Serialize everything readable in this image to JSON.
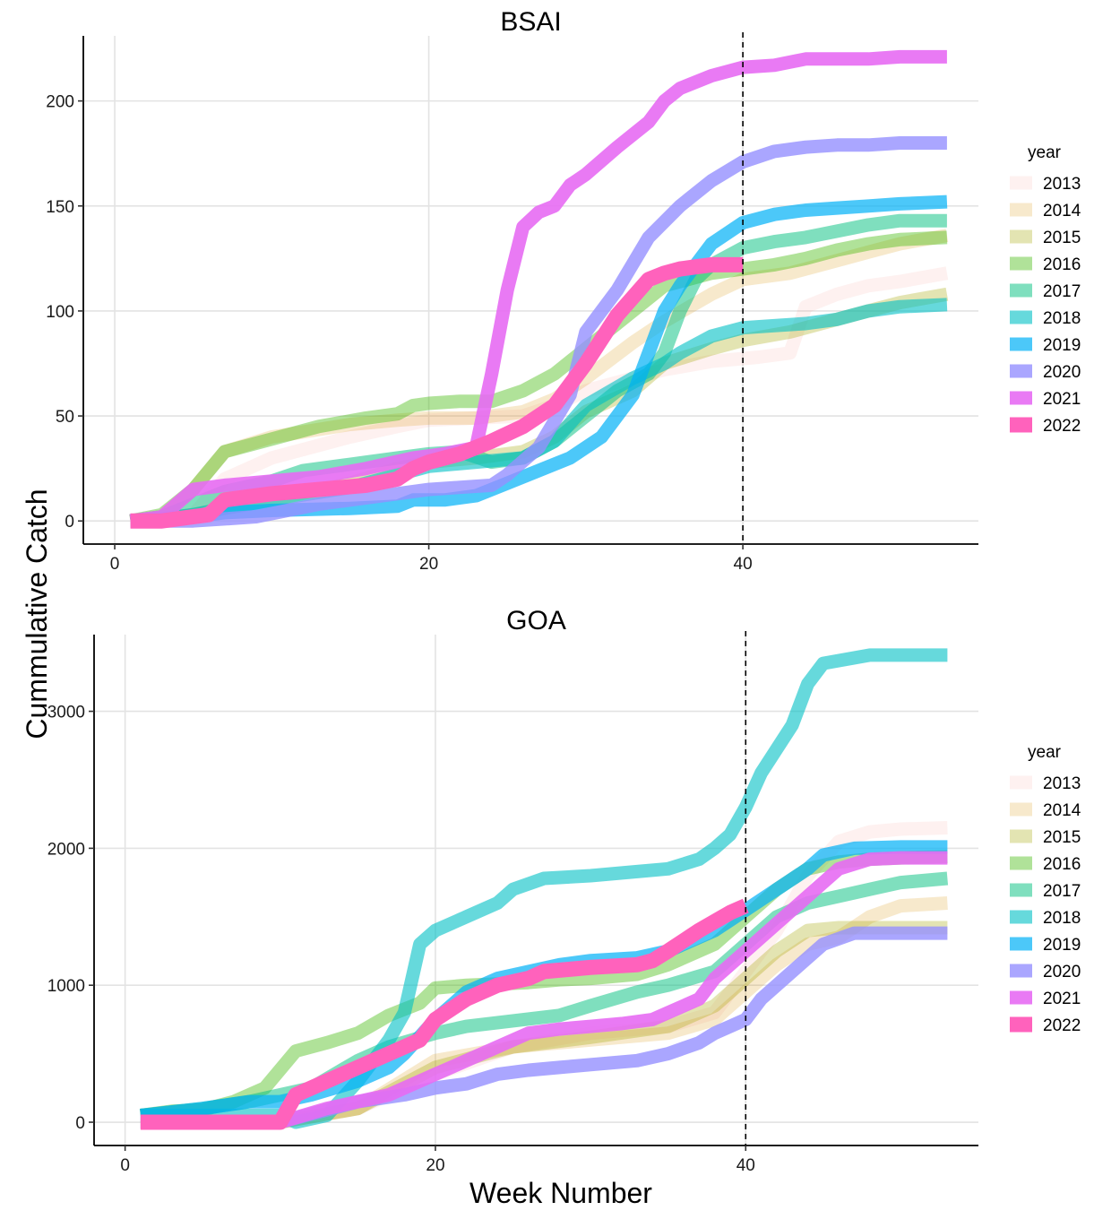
{
  "figure": {
    "ylabel": "Cummulative Catch",
    "xlabel": "Week Number",
    "legend_title": "year"
  },
  "colors": {
    "2013": "#F8766D",
    "2014": "#D89000",
    "2015": "#A3A500",
    "2016": "#39B600",
    "2017": "#00BF7D",
    "2018": "#00BFC4",
    "2019": "#00B0F6",
    "2020": "#9590FF",
    "2021": "#E76BF3",
    "2022": "#FF62BC"
  },
  "chart_data": [
    {
      "type": "line",
      "title": "BSAI",
      "xlim": [
        -2,
        55
      ],
      "ylim": [
        -11,
        231
      ],
      "xticks": [
        0,
        20,
        40
      ],
      "yticks": [
        0,
        50,
        100,
        150,
        200
      ],
      "vline": 40,
      "grid": true,
      "legend": "right",
      "series": [
        {
          "name": "2013",
          "x": [
            1,
            3,
            5,
            7,
            10,
            15,
            18,
            20,
            23,
            26,
            28,
            30,
            33,
            35,
            38,
            41,
            43,
            44,
            46,
            48,
            50,
            53
          ],
          "y": [
            0,
            1,
            3,
            20,
            30,
            40,
            45,
            48,
            49,
            50,
            55,
            62,
            68,
            72,
            76,
            78,
            80,
            102,
            108,
            112,
            114,
            118
          ]
        },
        {
          "name": "2014",
          "x": [
            1,
            3,
            5,
            7,
            10,
            15,
            18,
            20,
            23,
            26,
            28,
            30,
            33,
            35,
            38,
            40,
            43,
            46,
            48,
            50,
            53
          ],
          "y": [
            0,
            2,
            15,
            33,
            40,
            46,
            48,
            49,
            49,
            52,
            58,
            68,
            85,
            95,
            108,
            115,
            118,
            124,
            128,
            132,
            136
          ]
        },
        {
          "name": "2015",
          "x": [
            1,
            3,
            5,
            7,
            10,
            15,
            18,
            20,
            23,
            26,
            28,
            30,
            33,
            35,
            38,
            40,
            43,
            46,
            48,
            50,
            53
          ],
          "y": [
            0,
            1,
            3,
            6,
            10,
            18,
            25,
            28,
            30,
            33,
            40,
            52,
            62,
            75,
            82,
            86,
            90,
            96,
            100,
            104,
            108
          ]
        },
        {
          "name": "2016",
          "x": [
            1,
            3,
            5,
            7,
            10,
            13,
            16,
            18,
            19,
            20,
            22,
            24,
            26,
            28,
            30,
            33,
            35,
            38,
            40,
            42,
            44,
            46,
            48,
            50,
            53
          ],
          "y": [
            0,
            3,
            15,
            33,
            39,
            45,
            49,
            51,
            55,
            56,
            57,
            57,
            62,
            70,
            82,
            100,
            112,
            118,
            120,
            122,
            125,
            129,
            132,
            134,
            135
          ]
        },
        {
          "name": "2017",
          "x": [
            1,
            3,
            5,
            7,
            10,
            12,
            15,
            18,
            20,
            22,
            24,
            26,
            28,
            30,
            32,
            34,
            35,
            36,
            37,
            38,
            39,
            40,
            42,
            44,
            46,
            48,
            50,
            53
          ],
          "y": [
            0,
            2,
            8,
            14,
            19,
            24,
            27,
            30,
            32,
            33,
            28,
            30,
            38,
            50,
            62,
            70,
            80,
            100,
            115,
            122,
            126,
            130,
            133,
            135,
            138,
            141,
            143,
            143
          ]
        },
        {
          "name": "2018",
          "x": [
            1,
            3,
            5,
            7,
            10,
            15,
            18,
            20,
            23,
            26,
            28,
            30,
            33,
            35,
            36,
            38,
            40,
            42,
            44,
            46,
            48,
            50,
            53
          ],
          "y": [
            0,
            1,
            3,
            6,
            10,
            16,
            22,
            26,
            28,
            30,
            38,
            55,
            68,
            75,
            80,
            88,
            92,
            93,
            94,
            96,
            100,
            102,
            103
          ]
        },
        {
          "name": "2019",
          "x": [
            1,
            3,
            5,
            7,
            10,
            15,
            18,
            19,
            21,
            23,
            25,
            27,
            29,
            31,
            33,
            34,
            35,
            36,
            37,
            38,
            40,
            42,
            44,
            46,
            48,
            50,
            53
          ],
          "y": [
            0,
            1,
            2,
            4,
            5,
            6,
            7,
            10,
            10,
            12,
            18,
            24,
            30,
            40,
            60,
            80,
            100,
            112,
            122,
            132,
            142,
            146,
            148,
            149,
            150,
            151,
            152
          ]
        },
        {
          "name": "2020",
          "x": [
            1,
            3,
            5,
            7,
            9,
            11,
            13,
            15,
            18,
            20,
            22,
            24,
            25,
            27,
            29,
            30,
            32,
            34,
            36,
            38,
            40,
            42,
            44,
            46,
            48,
            50,
            53
          ],
          "y": [
            0,
            0,
            0,
            1,
            2,
            5,
            8,
            10,
            13,
            15,
            16,
            17,
            22,
            35,
            60,
            90,
            110,
            135,
            150,
            162,
            171,
            176,
            178,
            179,
            179,
            180,
            180
          ]
        },
        {
          "name": "2021",
          "x": [
            1,
            3,
            5,
            7,
            10,
            13,
            16,
            19,
            21,
            23,
            24,
            25,
            26,
            27,
            28,
            29,
            30,
            32,
            34,
            35,
            36,
            38,
            40,
            42,
            44,
            46,
            48,
            50,
            53
          ],
          "y": [
            0,
            2,
            15,
            17,
            19,
            21,
            25,
            30,
            32,
            35,
            70,
            110,
            140,
            147,
            150,
            160,
            165,
            178,
            190,
            200,
            206,
            212,
            216,
            217,
            220,
            220,
            220,
            221,
            221
          ]
        },
        {
          "name": "2022",
          "x": [
            1,
            3,
            6,
            7,
            10,
            13,
            16,
            18,
            19,
            20,
            22,
            24,
            26,
            28,
            30,
            32,
            34,
            35,
            36,
            37,
            38,
            39,
            40
          ],
          "y": [
            0,
            0,
            3,
            10,
            13,
            15,
            17,
            20,
            25,
            28,
            32,
            38,
            45,
            55,
            75,
            98,
            115,
            118,
            120,
            121,
            122,
            122,
            122
          ]
        }
      ]
    },
    {
      "type": "line",
      "title": "GOA",
      "xlim": [
        -2,
        55
      ],
      "ylim": [
        -170,
        3560
      ],
      "xticks": [
        0,
        20,
        40
      ],
      "yticks": [
        0,
        1000,
        2000,
        3000
      ],
      "vline": 40,
      "grid": true,
      "legend": "right",
      "series": [
        {
          "name": "2013",
          "x": [
            1,
            5,
            10,
            15,
            20,
            25,
            30,
            35,
            38,
            40,
            42,
            44,
            46,
            48,
            50,
            53
          ],
          "y": [
            0,
            0,
            0,
            100,
            350,
            550,
            650,
            700,
            800,
            1100,
            1400,
            1800,
            2050,
            2120,
            2140,
            2150
          ]
        },
        {
          "name": "2014",
          "x": [
            1,
            5,
            10,
            15,
            20,
            25,
            30,
            35,
            38,
            40,
            42,
            44,
            46,
            48,
            50,
            53
          ],
          "y": [
            0,
            0,
            0,
            100,
            450,
            550,
            600,
            650,
            750,
            950,
            1150,
            1300,
            1350,
            1500,
            1580,
            1600
          ]
        },
        {
          "name": "2015",
          "x": [
            1,
            5,
            10,
            15,
            20,
            25,
            30,
            35,
            38,
            40,
            42,
            44,
            46,
            48,
            50,
            53
          ],
          "y": [
            0,
            0,
            0,
            100,
            400,
            550,
            620,
            700,
            850,
            1050,
            1250,
            1400,
            1420,
            1420,
            1420,
            1420
          ]
        },
        {
          "name": "2016",
          "x": [
            1,
            3,
            5,
            7,
            9,
            11,
            13,
            15,
            17,
            19,
            20,
            22,
            24,
            26,
            28,
            30,
            33,
            35,
            38,
            40,
            42,
            44,
            46,
            48,
            50,
            53
          ],
          "y": [
            50,
            80,
            90,
            150,
            250,
            520,
            580,
            650,
            780,
            870,
            980,
            1000,
            1010,
            1020,
            1040,
            1050,
            1080,
            1150,
            1300,
            1500,
            1700,
            1850,
            1900,
            1920,
            1930,
            1940
          ]
        },
        {
          "name": "2017",
          "x": [
            1,
            5,
            8,
            10,
            12,
            15,
            17,
            20,
            22,
            25,
            28,
            30,
            33,
            35,
            38,
            40,
            42,
            44,
            46,
            48,
            50,
            53
          ],
          "y": [
            50,
            100,
            150,
            200,
            250,
            450,
            550,
            650,
            700,
            740,
            780,
            850,
            950,
            1000,
            1100,
            1300,
            1500,
            1600,
            1650,
            1700,
            1750,
            1780
          ]
        },
        {
          "name": "2018",
          "x": [
            1,
            5,
            10,
            11,
            13,
            15,
            17,
            18,
            19,
            20,
            22,
            24,
            25,
            27,
            30,
            33,
            35,
            37,
            38,
            39,
            40,
            41,
            43,
            44,
            45,
            48,
            50,
            53
          ],
          "y": [
            50,
            50,
            50,
            0,
            50,
            300,
            600,
            800,
            1300,
            1400,
            1500,
            1600,
            1700,
            1780,
            1800,
            1830,
            1850,
            1920,
            2000,
            2100,
            2300,
            2550,
            2900,
            3200,
            3350,
            3410,
            3410,
            3410
          ]
        },
        {
          "name": "2019",
          "x": [
            1,
            5,
            8,
            10,
            12,
            15,
            17,
            18,
            20,
            22,
            24,
            26,
            28,
            30,
            33,
            35,
            38,
            40,
            42,
            44,
            45,
            47,
            50,
            53
          ],
          "y": [
            50,
            100,
            150,
            150,
            200,
            300,
            400,
            500,
            750,
            950,
            1050,
            1100,
            1150,
            1180,
            1200,
            1250,
            1400,
            1550,
            1700,
            1850,
            1950,
            2000,
            2010,
            2010
          ]
        },
        {
          "name": "2020",
          "x": [
            1,
            5,
            10,
            15,
            18,
            20,
            22,
            24,
            26,
            28,
            30,
            33,
            35,
            37,
            38,
            39,
            40,
            41,
            43,
            45,
            47,
            50,
            53
          ],
          "y": [
            0,
            0,
            0,
            150,
            200,
            250,
            280,
            350,
            380,
            400,
            420,
            450,
            500,
            580,
            650,
            700,
            750,
            900,
            1100,
            1300,
            1380,
            1380,
            1380
          ]
        },
        {
          "name": "2021",
          "x": [
            1,
            5,
            10,
            13,
            15,
            17,
            20,
            22,
            24,
            26,
            28,
            30,
            32,
            34,
            35,
            37,
            38,
            40,
            42,
            44,
            46,
            48,
            50,
            53
          ],
          "y": [
            0,
            0,
            0,
            100,
            150,
            200,
            350,
            450,
            550,
            650,
            680,
            700,
            720,
            750,
            800,
            900,
            1050,
            1250,
            1450,
            1650,
            1850,
            1920,
            1930,
            1930
          ]
        },
        {
          "name": "2022",
          "x": [
            1,
            5,
            10,
            11,
            13,
            15,
            17,
            19,
            20,
            22,
            24,
            26,
            27,
            30,
            33,
            34,
            35,
            37,
            39,
            40
          ],
          "y": [
            0,
            0,
            0,
            200,
            300,
            400,
            500,
            600,
            750,
            900,
            1000,
            1050,
            1100,
            1130,
            1150,
            1180,
            1250,
            1400,
            1530,
            1580
          ]
        }
      ]
    }
  ]
}
